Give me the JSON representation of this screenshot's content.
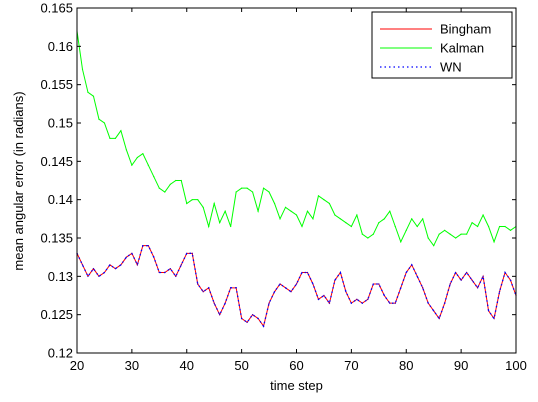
{
  "chart_data": {
    "type": "line",
    "xlabel": "time step",
    "ylabel": "mean angular error (in radians)",
    "xlim": [
      20,
      100
    ],
    "ylim": [
      0.12,
      0.165
    ],
    "xticks": [
      20,
      30,
      40,
      50,
      60,
      70,
      80,
      90,
      100
    ],
    "xtick_labels": [
      "20",
      "30",
      "40",
      "50",
      "60",
      "70",
      "80",
      "90",
      "100"
    ],
    "yticks": [
      0.12,
      0.125,
      0.13,
      0.135,
      0.14,
      0.145,
      0.15,
      0.155,
      0.16,
      0.165
    ],
    "ytick_labels": [
      "0.12",
      "0.125",
      "0.13",
      "0.135",
      "0.14",
      "0.145",
      "0.15",
      "0.155",
      "0.16",
      "0.165"
    ],
    "grid": false,
    "legend_position": "top-right",
    "x": [
      20,
      21,
      22,
      23,
      24,
      25,
      26,
      27,
      28,
      29,
      30,
      31,
      32,
      33,
      34,
      35,
      36,
      37,
      38,
      39,
      40,
      41,
      42,
      43,
      44,
      45,
      46,
      47,
      48,
      49,
      50,
      51,
      52,
      53,
      54,
      55,
      56,
      57,
      58,
      59,
      60,
      61,
      62,
      63,
      64,
      65,
      66,
      67,
      68,
      69,
      70,
      71,
      72,
      73,
      74,
      75,
      76,
      77,
      78,
      79,
      80,
      81,
      82,
      83,
      84,
      85,
      86,
      87,
      88,
      89,
      90,
      91,
      92,
      93,
      94,
      95,
      96,
      97,
      98,
      99,
      100
    ],
    "series": [
      {
        "name": "Bingham",
        "color": "#ff0000",
        "style": "solid",
        "values": [
          0.133,
          0.1315,
          0.13,
          0.131,
          0.13,
          0.1305,
          0.1315,
          0.131,
          0.1315,
          0.1325,
          0.133,
          0.1315,
          0.134,
          0.134,
          0.1325,
          0.1305,
          0.1305,
          0.131,
          0.13,
          0.1315,
          0.133,
          0.133,
          0.129,
          0.128,
          0.1285,
          0.1265,
          0.125,
          0.1265,
          0.1285,
          0.1285,
          0.1245,
          0.124,
          0.125,
          0.1245,
          0.1235,
          0.1265,
          0.128,
          0.129,
          0.1285,
          0.128,
          0.129,
          0.1305,
          0.1305,
          0.129,
          0.127,
          0.1275,
          0.1265,
          0.1295,
          0.1305,
          0.128,
          0.1265,
          0.127,
          0.1265,
          0.127,
          0.129,
          0.129,
          0.1275,
          0.1265,
          0.1265,
          0.1285,
          0.1305,
          0.1315,
          0.13,
          0.1285,
          0.1265,
          0.1255,
          0.1245,
          0.1265,
          0.129,
          0.1305,
          0.1295,
          0.1305,
          0.1295,
          0.1285,
          0.13,
          0.1255,
          0.1245,
          0.128,
          0.1305,
          0.1295,
          0.1275
        ]
      },
      {
        "name": "Kalman",
        "color": "#00ff00",
        "style": "solid",
        "values": [
          0.162,
          0.157,
          0.154,
          0.1535,
          0.1505,
          0.15,
          0.148,
          0.148,
          0.149,
          0.1465,
          0.1445,
          0.1455,
          0.146,
          0.1445,
          0.143,
          0.1415,
          0.141,
          0.142,
          0.1425,
          0.1425,
          0.1395,
          0.14,
          0.14,
          0.139,
          0.1365,
          0.1395,
          0.137,
          0.1385,
          0.1365,
          0.141,
          0.1415,
          0.1415,
          0.141,
          0.1385,
          0.1415,
          0.141,
          0.1395,
          0.1375,
          0.139,
          0.1385,
          0.138,
          0.1365,
          0.1385,
          0.1375,
          0.1405,
          0.14,
          0.1395,
          0.138,
          0.1375,
          0.137,
          0.1365,
          0.138,
          0.1355,
          0.135,
          0.1355,
          0.137,
          0.1375,
          0.1385,
          0.1365,
          0.1345,
          0.136,
          0.1375,
          0.1365,
          0.1375,
          0.135,
          0.134,
          0.1355,
          0.136,
          0.1355,
          0.135,
          0.1355,
          0.1355,
          0.137,
          0.1365,
          0.138,
          0.1365,
          0.1345,
          0.1365,
          0.1365,
          0.136,
          0.1365
        ]
      },
      {
        "name": "WN",
        "color": "#0000ff",
        "style": "dotted",
        "values": [
          0.133,
          0.1315,
          0.13,
          0.131,
          0.13,
          0.1305,
          0.1315,
          0.131,
          0.1315,
          0.1325,
          0.133,
          0.1315,
          0.134,
          0.134,
          0.1325,
          0.1305,
          0.1305,
          0.131,
          0.13,
          0.1315,
          0.133,
          0.133,
          0.129,
          0.128,
          0.1285,
          0.1265,
          0.125,
          0.1265,
          0.1285,
          0.1285,
          0.1245,
          0.124,
          0.125,
          0.1245,
          0.1235,
          0.1265,
          0.128,
          0.129,
          0.1285,
          0.128,
          0.129,
          0.1305,
          0.1305,
          0.129,
          0.127,
          0.1275,
          0.1265,
          0.1295,
          0.1305,
          0.128,
          0.1265,
          0.127,
          0.1265,
          0.127,
          0.129,
          0.129,
          0.1275,
          0.1265,
          0.1265,
          0.1285,
          0.1305,
          0.1315,
          0.13,
          0.1285,
          0.1265,
          0.1255,
          0.1245,
          0.1265,
          0.129,
          0.1305,
          0.1295,
          0.1305,
          0.1295,
          0.1285,
          0.13,
          0.1255,
          0.1245,
          0.128,
          0.1305,
          0.1295,
          0.1275
        ]
      }
    ]
  }
}
